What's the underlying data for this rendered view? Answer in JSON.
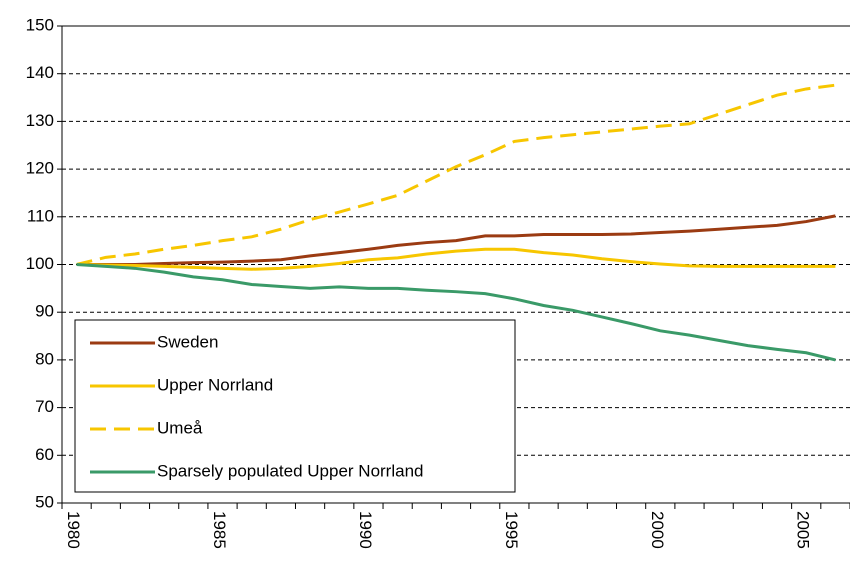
{
  "chart_data": {
    "type": "line",
    "categories": [
      1980,
      null,
      null,
      null,
      null,
      1985,
      null,
      null,
      null,
      null,
      1990,
      null,
      null,
      null,
      null,
      1995,
      null,
      null,
      null,
      null,
      2000,
      null,
      null,
      null,
      null,
      2005,
      null
    ],
    "series": [
      {
        "name": "Sweden",
        "color": "#9b3b12",
        "dash": false,
        "values": [
          100,
          100,
          100,
          100.2,
          100.4,
          100.5,
          100.7,
          101,
          101.8,
          102.5,
          103.2,
          104,
          104.6,
          105,
          106,
          106,
          106.3,
          106.3,
          106.3,
          106.4,
          106.7,
          107,
          107.4,
          107.8,
          108.2,
          109,
          110.2
        ]
      },
      {
        "name": "Upper Norrland",
        "color": "#f7c600",
        "dash": false,
        "values": [
          100,
          99.9,
          99.8,
          99.6,
          99.4,
          99.2,
          99,
          99.2,
          99.6,
          100.2,
          101,
          101.4,
          102.2,
          102.8,
          103.2,
          103.2,
          102.5,
          102,
          101.2,
          100.6,
          100.1,
          99.7,
          99.6,
          99.6,
          99.6,
          99.6,
          99.6
        ]
      },
      {
        "name": "Umeå",
        "color": "#f7c600",
        "dash": true,
        "values": [
          100,
          101.5,
          102.2,
          103.2,
          104,
          105,
          105.8,
          107.4,
          109.4,
          111,
          112.7,
          114.5,
          117.5,
          120.5,
          123,
          125.8,
          126.6,
          127.2,
          127.8,
          128.4,
          129,
          129.5,
          131.5,
          133.5,
          135.5,
          136.8,
          137.6
        ]
      },
      {
        "name": "Sparsely populated Upper Norrland",
        "color": "#3a9a68",
        "dash": false,
        "values": [
          100,
          99.6,
          99.2,
          98.4,
          97.4,
          96.8,
          95.8,
          95.4,
          95,
          95.3,
          95,
          95,
          94.6,
          94.3,
          93.9,
          92.8,
          91.4,
          90.4,
          89,
          87.6,
          86.1,
          85.2,
          84.1,
          83,
          82.2,
          81.5,
          80
        ]
      }
    ],
    "ylim": [
      50,
      150
    ],
    "yticks": [
      50,
      60,
      70,
      80,
      90,
      100,
      110,
      120,
      130,
      140,
      150
    ],
    "grid": true,
    "legend": "bottom-left"
  }
}
